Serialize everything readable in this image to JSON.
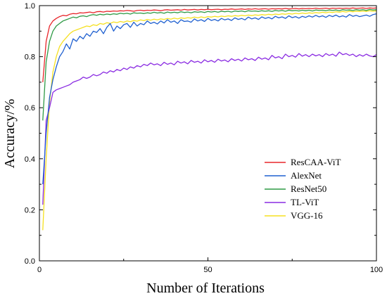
{
  "chart_data": {
    "type": "line",
    "title": "",
    "xlabel": "Number of Iterations",
    "ylabel": "Accuracy/%",
    "xlim": [
      0,
      100
    ],
    "ylim": [
      0.0,
      1.0
    ],
    "xticks": [
      0,
      50,
      100
    ],
    "yticks": [
      0.0,
      0.2,
      0.4,
      0.6,
      0.8,
      1.0
    ],
    "x_tick_labels": [
      "0",
      "50",
      "100"
    ],
    "y_tick_labels": [
      "0.0",
      "0.2",
      "0.4",
      "0.6",
      "0.8",
      "1.0"
    ],
    "grid": false,
    "legend_position": "bottom-right",
    "x": [
      1,
      2,
      3,
      4,
      5,
      6,
      7,
      8,
      9,
      10,
      11,
      12,
      13,
      14,
      15,
      16,
      17,
      18,
      19,
      20,
      21,
      22,
      23,
      24,
      25,
      26,
      27,
      28,
      29,
      30,
      31,
      32,
      33,
      34,
      35,
      36,
      37,
      38,
      39,
      40,
      41,
      42,
      43,
      44,
      45,
      46,
      47,
      48,
      49,
      50,
      51,
      52,
      53,
      54,
      55,
      56,
      57,
      58,
      59,
      60,
      61,
      62,
      63,
      64,
      65,
      66,
      67,
      68,
      69,
      70,
      71,
      72,
      73,
      74,
      75,
      76,
      77,
      78,
      79,
      80,
      81,
      82,
      83,
      84,
      85,
      86,
      87,
      88,
      89,
      90,
      91,
      92,
      93,
      94,
      95,
      96,
      97,
      98,
      99,
      100
    ],
    "series": [
      {
        "name": "ResCAA-ViT",
        "color": "#e8262b",
        "values": [
          0.7,
          0.86,
          0.92,
          0.94,
          0.95,
          0.957,
          0.962,
          0.96,
          0.966,
          0.969,
          0.968,
          0.972,
          0.971,
          0.973,
          0.975,
          0.972,
          0.976,
          0.977,
          0.975,
          0.978,
          0.977,
          0.979,
          0.978,
          0.98,
          0.979,
          0.981,
          0.98,
          0.978,
          0.981,
          0.982,
          0.98,
          0.982,
          0.981,
          0.983,
          0.982,
          0.98,
          0.983,
          0.984,
          0.982,
          0.983,
          0.984,
          0.982,
          0.985,
          0.983,
          0.984,
          0.985,
          0.983,
          0.985,
          0.984,
          0.986,
          0.984,
          0.985,
          0.986,
          0.984,
          0.986,
          0.985,
          0.987,
          0.985,
          0.986,
          0.987,
          0.985,
          0.987,
          0.986,
          0.988,
          0.986,
          0.987,
          0.988,
          0.986,
          0.988,
          0.987,
          0.988,
          0.987,
          0.989,
          0.987,
          0.988,
          0.989,
          0.987,
          0.989,
          0.988,
          0.989,
          0.988,
          0.99,
          0.988,
          0.989,
          0.99,
          0.988,
          0.99,
          0.989,
          0.99,
          0.989,
          0.99,
          0.989,
          0.991,
          0.989,
          0.99,
          0.991,
          0.989,
          0.991,
          0.99,
          0.991
        ]
      },
      {
        "name": "AlexNet",
        "color": "#1f60d0",
        "values": [
          0.3,
          0.5,
          0.64,
          0.71,
          0.76,
          0.8,
          0.82,
          0.85,
          0.83,
          0.87,
          0.86,
          0.88,
          0.87,
          0.89,
          0.88,
          0.9,
          0.895,
          0.91,
          0.89,
          0.915,
          0.93,
          0.9,
          0.92,
          0.91,
          0.925,
          0.93,
          0.915,
          0.935,
          0.92,
          0.93,
          0.925,
          0.94,
          0.93,
          0.935,
          0.928,
          0.94,
          0.932,
          0.945,
          0.935,
          0.94,
          0.93,
          0.945,
          0.938,
          0.94,
          0.935,
          0.948,
          0.94,
          0.945,
          0.938,
          0.95,
          0.942,
          0.946,
          0.94,
          0.95,
          0.944,
          0.948,
          0.942,
          0.952,
          0.946,
          0.95,
          0.944,
          0.955,
          0.948,
          0.952,
          0.946,
          0.956,
          0.95,
          0.954,
          0.948,
          0.958,
          0.952,
          0.956,
          0.95,
          0.96,
          0.953,
          0.957,
          0.951,
          0.958,
          0.954,
          0.96,
          0.955,
          0.962,
          0.956,
          0.96,
          0.954,
          0.962,
          0.957,
          0.963,
          0.956,
          0.96,
          0.955,
          0.965,
          0.958,
          0.962,
          0.957,
          0.96,
          0.963,
          0.958,
          0.965,
          0.968
        ]
      },
      {
        "name": "ResNet50",
        "color": "#2e9a45",
        "values": [
          0.55,
          0.78,
          0.86,
          0.9,
          0.92,
          0.93,
          0.94,
          0.945,
          0.95,
          0.955,
          0.952,
          0.958,
          0.96,
          0.957,
          0.962,
          0.965,
          0.962,
          0.966,
          0.964,
          0.967,
          0.965,
          0.968,
          0.966,
          0.97,
          0.968,
          0.97,
          0.967,
          0.972,
          0.97,
          0.971,
          0.969,
          0.972,
          0.97,
          0.974,
          0.971,
          0.973,
          0.97,
          0.975,
          0.972,
          0.974,
          0.972,
          0.976,
          0.973,
          0.975,
          0.972,
          0.976,
          0.974,
          0.976,
          0.973,
          0.977,
          0.975,
          0.977,
          0.974,
          0.978,
          0.976,
          0.978,
          0.975,
          0.979,
          0.977,
          0.979,
          0.976,
          0.98,
          0.978,
          0.979,
          0.977,
          0.98,
          0.978,
          0.98,
          0.977,
          0.981,
          0.979,
          0.981,
          0.978,
          0.982,
          0.98,
          0.981,
          0.979,
          0.982,
          0.98,
          0.982,
          0.979,
          0.983,
          0.981,
          0.982,
          0.98,
          0.983,
          0.981,
          0.983,
          0.98,
          0.984,
          0.982,
          0.983,
          0.981,
          0.984,
          0.982,
          0.984,
          0.981,
          0.985,
          0.983,
          0.984
        ]
      },
      {
        "name": "TL-ViT",
        "color": "#8a2be2",
        "values": [
          0.22,
          0.55,
          0.6,
          0.66,
          0.67,
          0.675,
          0.68,
          0.685,
          0.69,
          0.7,
          0.705,
          0.71,
          0.72,
          0.715,
          0.72,
          0.73,
          0.725,
          0.73,
          0.74,
          0.735,
          0.745,
          0.74,
          0.75,
          0.745,
          0.755,
          0.75,
          0.76,
          0.755,
          0.765,
          0.76,
          0.77,
          0.765,
          0.775,
          0.768,
          0.772,
          0.765,
          0.778,
          0.77,
          0.775,
          0.768,
          0.782,
          0.775,
          0.78,
          0.772,
          0.785,
          0.778,
          0.782,
          0.775,
          0.788,
          0.78,
          0.785,
          0.778,
          0.79,
          0.783,
          0.787,
          0.78,
          0.792,
          0.785,
          0.79,
          0.783,
          0.795,
          0.788,
          0.792,
          0.785,
          0.798,
          0.79,
          0.795,
          0.788,
          0.805,
          0.795,
          0.8,
          0.792,
          0.81,
          0.8,
          0.805,
          0.798,
          0.812,
          0.802,
          0.808,
          0.8,
          0.81,
          0.803,
          0.808,
          0.8,
          0.812,
          0.805,
          0.81,
          0.802,
          0.818,
          0.808,
          0.812,
          0.805,
          0.81,
          0.8,
          0.808,
          0.802,
          0.81,
          0.803,
          0.8,
          0.808
        ]
      },
      {
        "name": "VGG-16",
        "color": "#f5e020",
        "values": [
          0.12,
          0.4,
          0.62,
          0.74,
          0.8,
          0.84,
          0.86,
          0.875,
          0.89,
          0.9,
          0.905,
          0.91,
          0.915,
          0.92,
          0.918,
          0.925,
          0.922,
          0.93,
          0.927,
          0.933,
          0.93,
          0.936,
          0.933,
          0.938,
          0.935,
          0.94,
          0.937,
          0.942,
          0.939,
          0.944,
          0.941,
          0.946,
          0.943,
          0.947,
          0.944,
          0.948,
          0.946,
          0.95,
          0.947,
          0.951,
          0.948,
          0.952,
          0.95,
          0.953,
          0.951,
          0.955,
          0.952,
          0.956,
          0.953,
          0.957,
          0.955,
          0.958,
          0.956,
          0.959,
          0.957,
          0.96,
          0.958,
          0.961,
          0.959,
          0.962,
          0.96,
          0.963,
          0.961,
          0.964,
          0.962,
          0.965,
          0.963,
          0.966,
          0.964,
          0.967,
          0.965,
          0.968,
          0.966,
          0.969,
          0.967,
          0.97,
          0.968,
          0.971,
          0.969,
          0.972,
          0.97,
          0.973,
          0.971,
          0.974,
          0.972,
          0.975,
          0.973,
          0.976,
          0.974,
          0.977,
          0.975,
          0.978,
          0.976,
          0.978,
          0.977,
          0.979,
          0.977,
          0.98,
          0.978,
          0.98
        ]
      }
    ]
  }
}
